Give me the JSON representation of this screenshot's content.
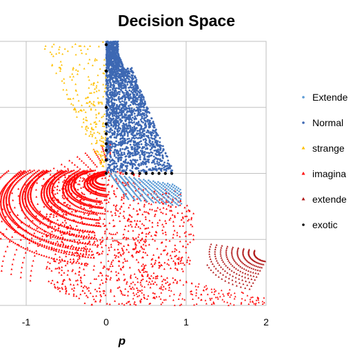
{
  "chart_data": {
    "type": "scatter",
    "title": "Decision Space",
    "xlabel": "p",
    "ylabel": "",
    "xlim": [
      -1.5,
      2
    ],
    "ylim": [
      -2,
      2
    ],
    "x_ticks": [
      "-1",
      "0",
      "1",
      "2"
    ],
    "x_tick_values": [
      -1,
      0,
      1,
      2
    ],
    "grid": true,
    "legend_position": "right",
    "series": [
      {
        "name": "Extende",
        "color": "#5b9bd5",
        "marker": "dot"
      },
      {
        "name": "Normal",
        "color": "#3d68b3",
        "marker": "dot"
      },
      {
        "name": "strange",
        "color": "#ffc000",
        "marker": "triangle"
      },
      {
        "name": "imagina",
        "color": "#ff0000",
        "marker": "triangle"
      },
      {
        "name": "extende",
        "color": "#b01818",
        "marker": "triangle"
      },
      {
        "name": "exotic",
        "color": "#000000",
        "marker": "dot"
      }
    ]
  }
}
